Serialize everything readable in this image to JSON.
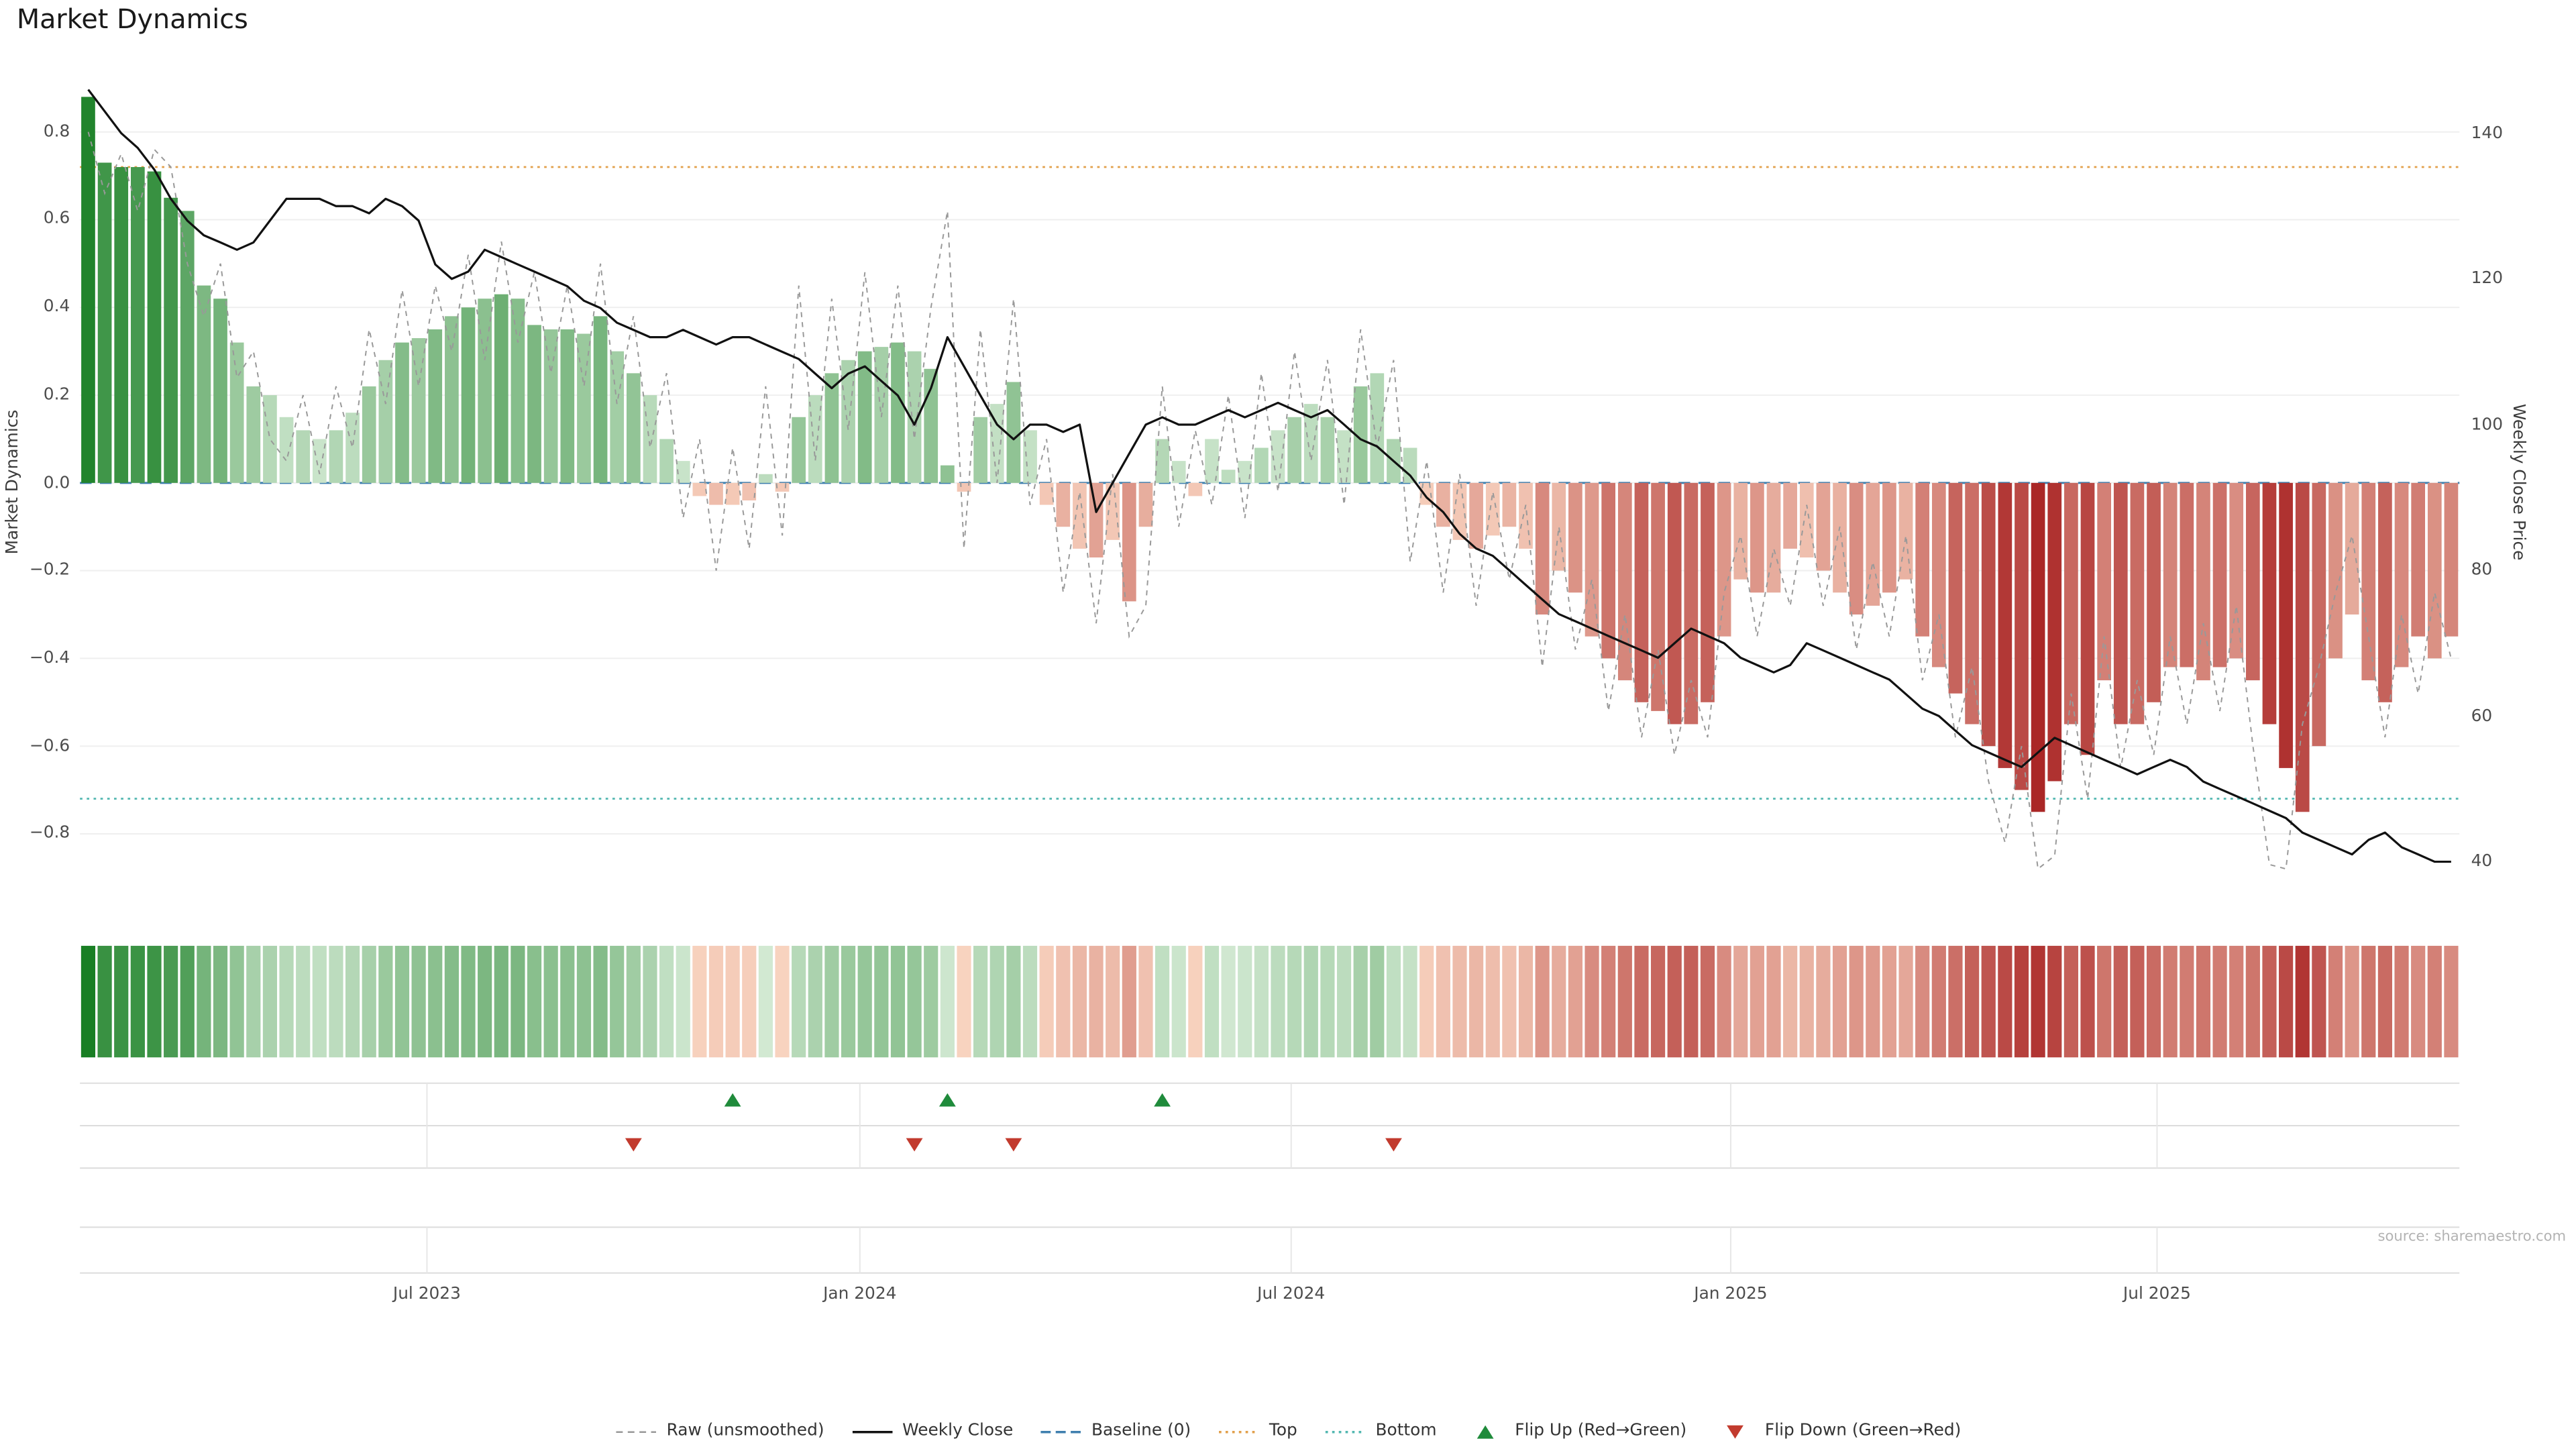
{
  "title": "Market Dynamics",
  "source": "source: sharemaestro.com",
  "axes": {
    "left_label": "Market Dynamics",
    "right_label": "Weekly Close Price",
    "left_tick_labels": [
      "0.8",
      "0.6",
      "0.4",
      "0.2",
      "0.0",
      "−0.2",
      "−0.4",
      "−0.6",
      "−0.8"
    ],
    "left_tick_values": [
      0.8,
      0.6,
      0.4,
      0.2,
      0,
      -0.2,
      -0.4,
      -0.6,
      -0.8
    ],
    "right_tick_labels": [
      "140",
      "120",
      "100",
      "80",
      "60",
      "40"
    ],
    "right_tick_values": [
      140,
      120,
      100,
      80,
      60,
      40
    ],
    "x_tick_labels": [
      "Jul 2023",
      "Jan 2024",
      "Jul 2024",
      "Jan 2025",
      "Jul 2025"
    ],
    "x_tick_positions": [
      20.5,
      46.7,
      72.8,
      99.4,
      125.2
    ]
  },
  "legend": [
    {
      "key": "raw",
      "label": "Raw (unsmoothed)",
      "swatch": "dash",
      "color": "#999999"
    },
    {
      "key": "weekly-close",
      "label": "Weekly Close",
      "swatch": "solid",
      "color": "#111111"
    },
    {
      "key": "baseline",
      "label": "Baseline (0)",
      "swatch": "dash2",
      "color": "#3f7fae"
    },
    {
      "key": "top",
      "label": "Top",
      "swatch": "dot",
      "color": "#e2a04b"
    },
    {
      "key": "bottom",
      "label": "Bottom",
      "swatch": "dot",
      "color": "#52b7b0"
    },
    {
      "key": "flip-up",
      "label": "Flip Up (Red→Green)",
      "swatch": "tri-up",
      "color": "#1f8b3b"
    },
    {
      "key": "flip-down",
      "label": "Flip Down (Green→Red)",
      "swatch": "tri-down",
      "color": "#c23b2e"
    }
  ],
  "chart_data": {
    "type": "bar+line",
    "title": "Market Dynamics",
    "n_weeks": 144,
    "baseline": 0,
    "top_threshold": 0.72,
    "bottom_threshold": -0.72,
    "ylim_left": [
      -0.93,
      0.93
    ],
    "ylim_right": [
      36,
      148
    ],
    "flip_up_indices": [
      39,
      52,
      65
    ],
    "flip_down_indices": [
      33,
      50,
      56,
      79
    ],
    "series": [
      {
        "name": "Market Dynamics (smoothed bars)",
        "type": "bar",
        "axis": "left",
        "values": [
          0.88,
          0.73,
          0.72,
          0.72,
          0.71,
          0.65,
          0.62,
          0.45,
          0.42,
          0.32,
          0.22,
          0.2,
          0.15,
          0.12,
          0.1,
          0.12,
          0.16,
          0.22,
          0.28,
          0.32,
          0.33,
          0.35,
          0.38,
          0.4,
          0.42,
          0.43,
          0.42,
          0.36,
          0.35,
          0.35,
          0.34,
          0.38,
          0.3,
          0.25,
          0.2,
          0.1,
          0.05,
          -0.03,
          -0.05,
          -0.05,
          -0.04,
          0.02,
          -0.02,
          0.15,
          0.2,
          0.25,
          0.28,
          0.3,
          0.31,
          0.32,
          0.3,
          0.26,
          0.04,
          -0.02,
          0.15,
          0.18,
          0.23,
          0.12,
          -0.05,
          -0.1,
          -0.15,
          -0.17,
          -0.13,
          -0.27,
          -0.1,
          0.1,
          0.05,
          -0.03,
          0.1,
          0.03,
          0.05,
          0.08,
          0.12,
          0.15,
          0.18,
          0.15,
          0.12,
          0.22,
          0.25,
          0.1,
          0.08,
          -0.05,
          -0.1,
          -0.13,
          -0.15,
          -0.12,
          -0.1,
          -0.15,
          -0.3,
          -0.2,
          -0.25,
          -0.35,
          -0.4,
          -0.45,
          -0.5,
          -0.52,
          -0.55,
          -0.55,
          -0.5,
          -0.35,
          -0.22,
          -0.25,
          -0.25,
          -0.15,
          -0.17,
          -0.2,
          -0.25,
          -0.3,
          -0.28,
          -0.25,
          -0.22,
          -0.35,
          -0.42,
          -0.48,
          -0.55,
          -0.6,
          -0.65,
          -0.7,
          -0.75,
          -0.68,
          -0.55,
          -0.62,
          -0.45,
          -0.55,
          -0.55,
          -0.5,
          -0.42,
          -0.42,
          -0.45,
          -0.42,
          -0.4,
          -0.45,
          -0.55,
          -0.65,
          -0.75,
          -0.6,
          -0.4,
          -0.3,
          -0.45,
          -0.5,
          -0.42,
          -0.35,
          -0.4,
          -0.35
        ]
      },
      {
        "name": "Raw (unsmoothed)",
        "type": "line",
        "axis": "left",
        "values": [
          0.8,
          0.66,
          0.75,
          0.62,
          0.76,
          0.72,
          0.5,
          0.38,
          0.5,
          0.24,
          0.3,
          0.1,
          0.05,
          0.2,
          0.02,
          0.22,
          0.08,
          0.35,
          0.18,
          0.44,
          0.22,
          0.45,
          0.3,
          0.52,
          0.28,
          0.55,
          0.32,
          0.48,
          0.25,
          0.45,
          0.22,
          0.5,
          0.18,
          0.38,
          0.08,
          0.25,
          -0.08,
          0.1,
          -0.2,
          0.08,
          -0.15,
          0.22,
          -0.12,
          0.45,
          0.05,
          0.42,
          0.12,
          0.48,
          0.15,
          0.45,
          0.1,
          0.4,
          0.62,
          -0.15,
          0.35,
          0.0,
          0.42,
          -0.05,
          0.1,
          -0.25,
          -0.02,
          -0.32,
          0.02,
          -0.35,
          -0.28,
          0.22,
          -0.1,
          0.12,
          -0.05,
          0.2,
          -0.08,
          0.25,
          -0.02,
          0.3,
          0.05,
          0.28,
          -0.05,
          0.35,
          0.08,
          0.28,
          -0.18,
          0.05,
          -0.25,
          0.02,
          -0.28,
          -0.02,
          -0.22,
          -0.05,
          -0.42,
          -0.1,
          -0.38,
          -0.22,
          -0.52,
          -0.3,
          -0.58,
          -0.38,
          -0.62,
          -0.45,
          -0.58,
          -0.25,
          -0.12,
          -0.35,
          -0.15,
          -0.28,
          -0.05,
          -0.28,
          -0.1,
          -0.38,
          -0.18,
          -0.35,
          -0.12,
          -0.45,
          -0.3,
          -0.58,
          -0.42,
          -0.68,
          -0.82,
          -0.6,
          -0.88,
          -0.85,
          -0.48,
          -0.72,
          -0.35,
          -0.65,
          -0.45,
          -0.62,
          -0.35,
          -0.55,
          -0.32,
          -0.52,
          -0.28,
          -0.6,
          -0.87,
          -0.88,
          -0.55,
          -0.42,
          -0.25,
          -0.12,
          -0.35,
          -0.58,
          -0.3,
          -0.48,
          -0.25,
          -0.4
        ]
      },
      {
        "name": "Weekly Close",
        "type": "line",
        "axis": "right",
        "values": [
          146,
          143,
          140,
          138,
          135,
          131,
          128,
          126,
          125,
          124,
          125,
          128,
          131,
          131,
          131,
          130,
          130,
          129,
          131,
          130,
          128,
          122,
          120,
          121,
          124,
          123,
          122,
          121,
          120,
          119,
          117,
          116,
          114,
          113,
          112,
          112,
          113,
          112,
          111,
          112,
          112,
          111,
          110,
          109,
          107,
          105,
          107,
          108,
          106,
          104,
          100,
          105,
          112,
          108,
          104,
          100,
          98,
          100,
          100,
          99,
          100,
          88,
          92,
          96,
          100,
          101,
          100,
          100,
          101,
          102,
          101,
          102,
          103,
          102,
          101,
          102,
          100,
          98,
          97,
          95,
          93,
          90,
          88,
          85,
          83,
          82,
          80,
          78,
          76,
          74,
          73,
          72,
          71,
          70,
          69,
          68,
          70,
          72,
          71,
          70,
          68,
          67,
          66,
          67,
          70,
          69,
          68,
          67,
          66,
          65,
          63,
          61,
          60,
          58,
          56,
          55,
          54,
          53,
          55,
          57,
          56,
          55,
          54,
          53,
          52,
          53,
          54,
          53,
          51,
          50,
          49,
          48,
          47,
          46,
          44,
          43,
          42,
          41,
          43,
          44,
          42,
          41,
          40,
          40
        ]
      }
    ]
  },
  "colors": {
    "bar_green_light": "#d6ebd6",
    "bar_green_dark": "#107a1c",
    "bar_red_light": "#fad7c3",
    "bar_red_dark": "#a01012",
    "weekly_close": "#111111",
    "raw": "#999999",
    "baseline": "#3f7fae",
    "top": "#e2a04b",
    "bottom": "#52b7b0",
    "flip_up": "#1f8b3b",
    "flip_down": "#c23b2e",
    "grid": "#efefef",
    "panel_line": "#dcdcdc",
    "tick_text": "#4d4d4d"
  }
}
